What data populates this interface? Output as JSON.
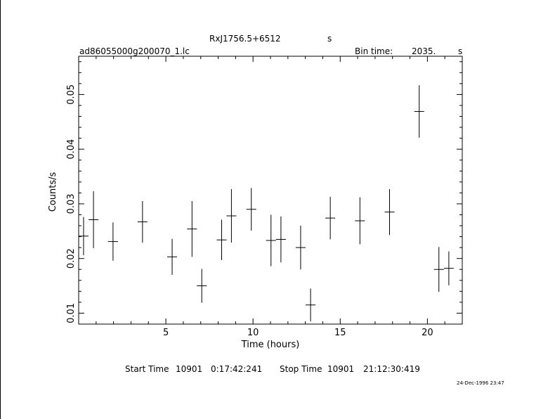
{
  "header": {
    "source_name": "RxJ1756.5+6512",
    "source_unit": "s",
    "filename": "ad86055000g200070_1.lc",
    "bin_time_label": "Bin time:",
    "bin_time_value": "2035.",
    "bin_time_unit": "s"
  },
  "footer": {
    "start_label": "Start Time",
    "start_day": "10901",
    "start_time": "0:17:42:241",
    "stop_label": "Stop Time",
    "stop_day": "10901",
    "stop_time": "21:12:30:419",
    "timestamp": "24-Dec-1996 23:47"
  },
  "chart_data": {
    "type": "scatter",
    "title": "RxJ1756.5+6512",
    "xlabel": "Time (hours)",
    "ylabel": "Counts/s",
    "xlim": [
      0,
      22
    ],
    "ylim": [
      0.008,
      0.057
    ],
    "x_ticks": [
      5,
      10,
      15,
      20
    ],
    "y_ticks": [
      0.01,
      0.02,
      0.03,
      0.04,
      0.05
    ],
    "x_tick_labels": [
      "5",
      "10",
      "15",
      "20"
    ],
    "y_tick_labels": [
      "0.01",
      "0.02",
      "0.03",
      "0.04",
      "0.05"
    ],
    "bin_half_width_hours": 0.283,
    "grid": false,
    "series": [
      {
        "points": [
          {
            "x": 0.28,
            "y": 0.0241,
            "yerr": 0.0035
          },
          {
            "x": 0.85,
            "y": 0.0271,
            "yerr": 0.0052
          },
          {
            "x": 1.97,
            "y": 0.0231,
            "yerr": 0.0035
          },
          {
            "x": 3.66,
            "y": 0.0267,
            "yerr": 0.0038
          },
          {
            "x": 5.36,
            "y": 0.0203,
            "yerr": 0.0033
          },
          {
            "x": 6.5,
            "y": 0.0254,
            "yerr": 0.0051
          },
          {
            "x": 7.06,
            "y": 0.015,
            "yerr": 0.0031
          },
          {
            "x": 8.2,
            "y": 0.0234,
            "yerr": 0.0037
          },
          {
            "x": 8.76,
            "y": 0.0278,
            "yerr": 0.0049
          },
          {
            "x": 9.9,
            "y": 0.029,
            "yerr": 0.0039
          },
          {
            "x": 11.03,
            "y": 0.0233,
            "yerr": 0.0047
          },
          {
            "x": 11.6,
            "y": 0.0235,
            "yerr": 0.0042
          },
          {
            "x": 12.73,
            "y": 0.022,
            "yerr": 0.004
          },
          {
            "x": 13.3,
            "y": 0.0115,
            "yerr": 0.003
          },
          {
            "x": 14.43,
            "y": 0.0274,
            "yerr": 0.0039
          },
          {
            "x": 16.13,
            "y": 0.0269,
            "yerr": 0.0043
          },
          {
            "x": 17.83,
            "y": 0.0285,
            "yerr": 0.0042
          },
          {
            "x": 19.53,
            "y": 0.0469,
            "yerr": 0.0048
          },
          {
            "x": 20.66,
            "y": 0.018,
            "yerr": 0.0041
          },
          {
            "x": 21.23,
            "y": 0.0182,
            "yerr": 0.0031
          }
        ]
      }
    ]
  }
}
